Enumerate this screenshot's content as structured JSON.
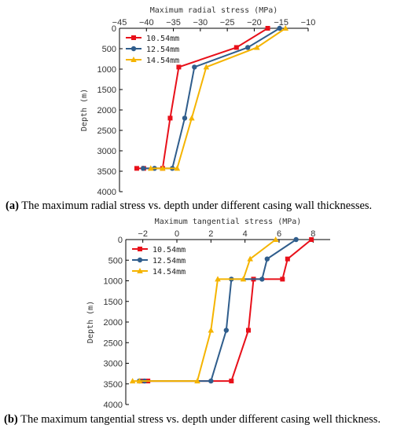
{
  "chart_data": [
    {
      "type": "line",
      "title": "",
      "xlabel": "Maximum radial stress (MPa)",
      "ylabel": "Depth (m)",
      "xlim": [
        -45,
        -10
      ],
      "ylim": [
        0,
        4000
      ],
      "x_ticks": [
        "-45",
        "-40",
        "-35",
        "-30",
        "-25",
        "-20",
        "-15",
        "-10"
      ],
      "y_ticks": [
        "0",
        "500",
        "1000",
        "1500",
        "2000",
        "2500",
        "3000",
        "3500",
        "4000"
      ],
      "y_inverted": true,
      "x_axis_position": "top",
      "legend_position": "top-left",
      "series": [
        {
          "name": "10.54mm",
          "color": "#e8101a",
          "marker": "square",
          "points": [
            [
              -17.5,
              0
            ],
            [
              -23.3,
              470
            ],
            [
              -34.0,
              950
            ],
            [
              -35.6,
              2200
            ],
            [
              -37.0,
              3430
            ],
            [
              -40.5,
              3430
            ],
            [
              -41.8,
              3430
            ]
          ]
        },
        {
          "name": "12.54mm",
          "color": "#2f5d8c",
          "marker": "circle",
          "points": [
            [
              -15.3,
              0
            ],
            [
              -21.2,
              470
            ],
            [
              -31.1,
              950
            ],
            [
              -32.9,
              2200
            ],
            [
              -35.2,
              3430
            ],
            [
              -38.5,
              3430
            ],
            [
              -40.6,
              3430
            ]
          ]
        },
        {
          "name": "14.54mm",
          "color": "#f5b400",
          "marker": "triangle",
          "points": [
            [
              -14.2,
              0
            ],
            [
              -19.5,
              470
            ],
            [
              -28.9,
              950
            ],
            [
              -31.6,
              2200
            ],
            [
              -34.3,
              3430
            ],
            [
              -37.0,
              3430
            ],
            [
              -39.2,
              3430
            ]
          ]
        }
      ],
      "caption_label": "(a)",
      "caption_text": " The maximum radial stress vs. depth under different casing wall thicknesses."
    },
    {
      "type": "line",
      "title": "",
      "xlabel": "Maximum tangential stress (MPa)",
      "ylabel": "Depth (m)",
      "xlim": [
        -3,
        9
      ],
      "ylim": [
        0,
        4000
      ],
      "x_ticks": [
        "-2",
        "0",
        "2",
        "4",
        "6",
        "8"
      ],
      "y_ticks": [
        "0",
        "500",
        "1000",
        "1500",
        "2000",
        "2500",
        "3000",
        "3500",
        "4000"
      ],
      "y_inverted": true,
      "x_axis_position": "top",
      "legend_position": "top-left",
      "series": [
        {
          "name": "10.54mm",
          "color": "#e8101a",
          "marker": "square",
          "points": [
            [
              7.9,
              0
            ],
            [
              6.5,
              470
            ],
            [
              6.2,
              960
            ],
            [
              4.5,
              960
            ],
            [
              4.2,
              2200
            ],
            [
              3.2,
              3430
            ],
            [
              -1.7,
              3430
            ],
            [
              -2.0,
              3430
            ]
          ]
        },
        {
          "name": "12.54mm",
          "color": "#2f5d8c",
          "marker": "circle",
          "points": [
            [
              7.0,
              0
            ],
            [
              5.3,
              470
            ],
            [
              5.0,
              960
            ],
            [
              3.2,
              960
            ],
            [
              2.9,
              2200
            ],
            [
              2.0,
              3430
            ],
            [
              -1.9,
              3430
            ],
            [
              -2.2,
              3430
            ]
          ]
        },
        {
          "name": "14.54mm",
          "color": "#f5b400",
          "marker": "triangle",
          "points": [
            [
              5.8,
              0
            ],
            [
              4.3,
              470
            ],
            [
              3.9,
              960
            ],
            [
              2.4,
              960
            ],
            [
              2.0,
              2200
            ],
            [
              1.2,
              3430
            ],
            [
              -2.2,
              3430
            ],
            [
              -2.6,
              3430
            ]
          ]
        }
      ],
      "caption_label": "(b)",
      "caption_text": " The maximum tangential stress vs. depth under different casing well thickness."
    }
  ]
}
